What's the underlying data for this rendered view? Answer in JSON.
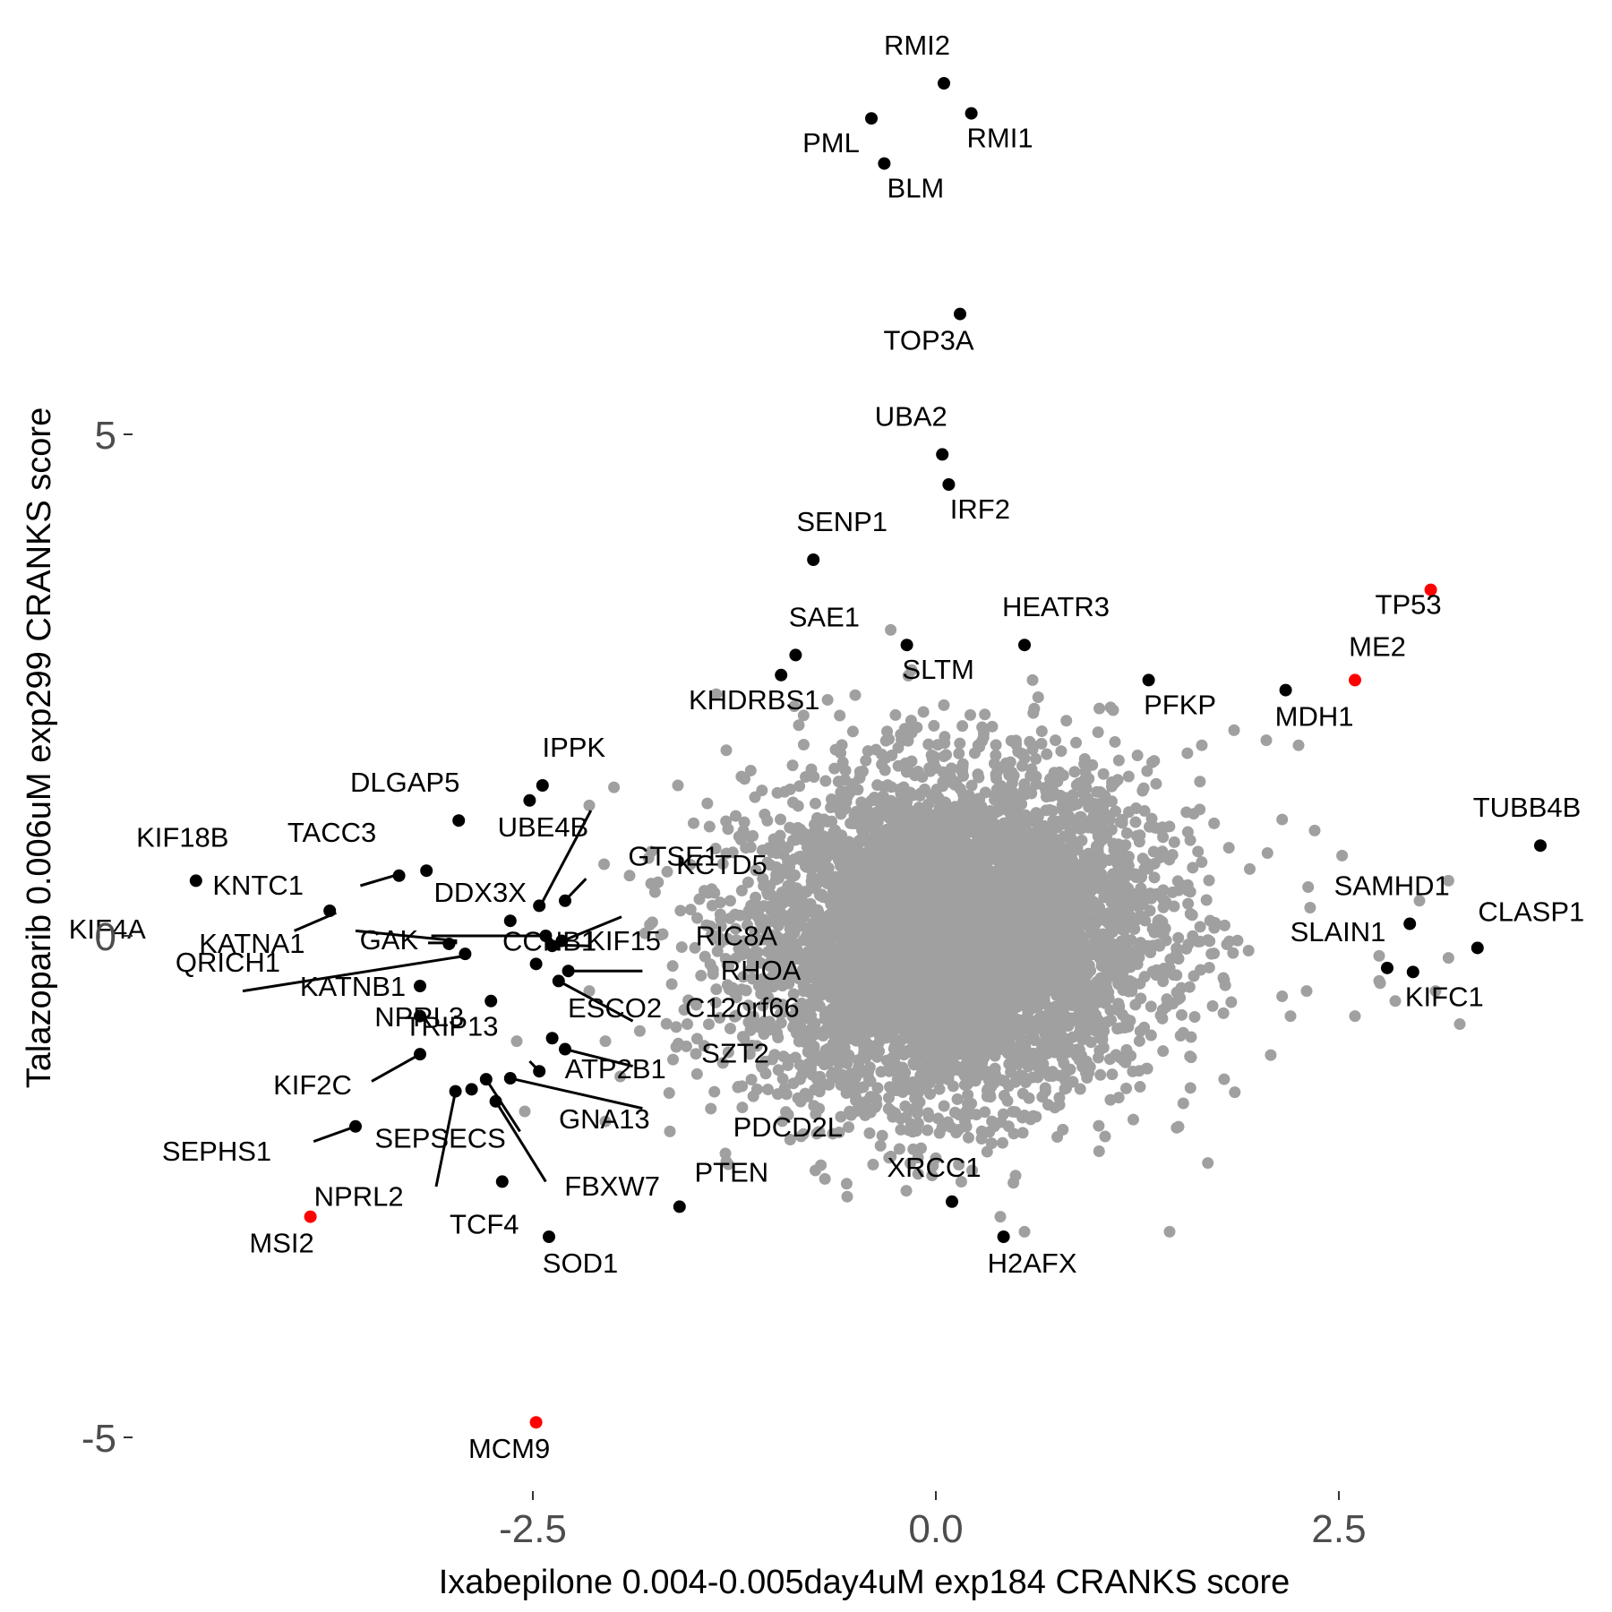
{
  "chart_data": {
    "type": "scatter",
    "xlabel": "Ixabepilone 0.004-0.005day4uM exp184 CRANKS score",
    "ylabel": "Talazoparib 0.006uM exp299 CRANKS score",
    "xlim": [
      -5.0,
      4.8
    ],
    "ylim": [
      -5.5,
      8.8
    ],
    "x_ticks": [
      -2.5,
      0.0,
      2.5
    ],
    "x_tick_labels": [
      "-2.5",
      "0.0",
      "2.5"
    ],
    "y_ticks": [
      -5,
      0,
      5
    ],
    "y_tick_labels": [
      "-5",
      "0",
      "5"
    ],
    "grid": false,
    "colors": {
      "highlight": "#000000",
      "special": "#ff0000",
      "background": "#a0a0a0",
      "connector": "#000000"
    },
    "labeled_points": [
      {
        "label": "RMI2",
        "x": 0.05,
        "y": 8.5,
        "color": "#000000"
      },
      {
        "label": "RMI1",
        "x": 0.22,
        "y": 8.2,
        "color": "#000000"
      },
      {
        "label": "PML",
        "x": -0.4,
        "y": 8.15,
        "color": "#000000"
      },
      {
        "label": "BLM",
        "x": -0.32,
        "y": 7.7,
        "color": "#000000"
      },
      {
        "label": "TOP3A",
        "x": 0.15,
        "y": 6.2,
        "color": "#000000"
      },
      {
        "label": "UBA2",
        "x": 0.04,
        "y": 4.8,
        "color": "#000000"
      },
      {
        "label": "IRF2",
        "x": 0.08,
        "y": 4.5,
        "color": "#000000"
      },
      {
        "label": "SENP1",
        "x": -0.76,
        "y": 3.75,
        "color": "#000000"
      },
      {
        "label": "TP53",
        "x": 3.07,
        "y": 3.45,
        "color": "#ff0000"
      },
      {
        "label": "SAE1",
        "x": -0.87,
        "y": 2.8,
        "color": "#000000"
      },
      {
        "label": "KHDRBS1",
        "x": -0.96,
        "y": 2.6,
        "color": "#000000"
      },
      {
        "label": "SLTM",
        "x": -0.18,
        "y": 2.9,
        "color": "#000000"
      },
      {
        "label": "HEATR3",
        "x": 0.55,
        "y": 2.9,
        "color": "#000000"
      },
      {
        "label": "ME2",
        "x": 2.6,
        "y": 2.55,
        "color": "#ff0000"
      },
      {
        "label": "PFKP",
        "x": 1.32,
        "y": 2.55,
        "color": "#000000"
      },
      {
        "label": "MDH1",
        "x": 2.17,
        "y": 2.45,
        "color": "#000000"
      },
      {
        "label": "IPPK",
        "x": -2.44,
        "y": 1.5,
        "color": "#000000"
      },
      {
        "label": "DLGAP5",
        "x": -2.96,
        "y": 1.15,
        "color": "#000000"
      },
      {
        "label": "UBE4B",
        "x": -2.52,
        "y": 1.35,
        "color": "#000000"
      },
      {
        "label": "TUBB4B",
        "x": 3.75,
        "y": 0.9,
        "color": "#000000"
      },
      {
        "label": "KIF18B",
        "x": -4.59,
        "y": 0.55,
        "color": "#000000"
      },
      {
        "label": "TACC3",
        "x": -3.33,
        "y": 0.6,
        "color": "#000000"
      },
      {
        "label": "DDX3X",
        "x": -3.16,
        "y": 0.65,
        "color": "#000000"
      },
      {
        "label": "GTSE1",
        "x": -2.46,
        "y": 0.3,
        "color": "#000000"
      },
      {
        "label": "KCTD5",
        "x": -2.3,
        "y": 0.35,
        "color": "#000000"
      },
      {
        "label": "KNTC1",
        "x": -3.76,
        "y": 0.25,
        "color": "#000000"
      },
      {
        "label": "SAMHD1",
        "x": 2.94,
        "y": 0.12,
        "color": "#000000"
      },
      {
        "label": "CLASP1",
        "x": 3.36,
        "y": -0.12,
        "color": "#000000"
      },
      {
        "label": "RIC8A",
        "x": -2.32,
        "y": -0.05,
        "color": "#000000"
      },
      {
        "label": "KIF15",
        "x": -2.38,
        "y": -0.1,
        "color": "#000000"
      },
      {
        "label": "GAK",
        "x": -2.42,
        "y": 0.0,
        "color": "#000000"
      },
      {
        "label": "KIF4A",
        "x": -2.64,
        "y": 0.15,
        "color": "#000000"
      },
      {
        "label": "KATNA1",
        "x": -3.02,
        "y": -0.08,
        "color": "#000000"
      },
      {
        "label": "SLAIN1",
        "x": 2.8,
        "y": -0.32,
        "color": "#000000"
      },
      {
        "label": "KIFC1",
        "x": 2.96,
        "y": -0.36,
        "color": "#000000"
      },
      {
        "label": "RHOA",
        "x": -2.28,
        "y": -0.35,
        "color": "#000000"
      },
      {
        "label": "QRICH1",
        "x": -2.92,
        "y": -0.18,
        "color": "#000000"
      },
      {
        "label": "KATNB1",
        "x": -3.2,
        "y": -0.5,
        "color": "#000000"
      },
      {
        "label": "CCNB1",
        "x": -2.48,
        "y": -0.28,
        "color": "#000000"
      },
      {
        "label": "C12orf66",
        "x": -2.34,
        "y": -0.45,
        "color": "#000000"
      },
      {
        "label": "NPRL3",
        "x": -2.76,
        "y": -0.65,
        "color": "#000000"
      },
      {
        "label": "ESCO2",
        "x": -2.38,
        "y": -1.02,
        "color": "#000000"
      },
      {
        "label": "SZT2",
        "x": -2.3,
        "y": -1.13,
        "color": "#000000"
      },
      {
        "label": "TRIP13",
        "x": -3.2,
        "y": -0.8,
        "color": "#000000"
      },
      {
        "label": "KIF2C",
        "x": -3.2,
        "y": -1.18,
        "color": "#000000"
      },
      {
        "label": "ATP2B1",
        "x": -2.46,
        "y": -1.35,
        "color": "#000000"
      },
      {
        "label": "GNA13",
        "x": -2.79,
        "y": -1.43,
        "color": "#000000"
      },
      {
        "label": "PDCD2L",
        "x": -2.64,
        "y": -1.42,
        "color": "#000000"
      },
      {
        "label": "SEPSECS",
        "x": -2.88,
        "y": -1.53,
        "color": "#000000"
      },
      {
        "label": "NPRL2",
        "x": -2.98,
        "y": -1.55,
        "color": "#000000"
      },
      {
        "label": "FBXW7",
        "x": -2.73,
        "y": -1.65,
        "color": "#000000"
      },
      {
        "label": "SEPHS1",
        "x": -3.6,
        "y": -1.9,
        "color": "#000000"
      },
      {
        "label": "TCF4",
        "x": -2.69,
        "y": -2.45,
        "color": "#000000"
      },
      {
        "label": "PTEN",
        "x": -1.59,
        "y": -2.7,
        "color": "#000000"
      },
      {
        "label": "XRCC1",
        "x": 0.1,
        "y": -2.65,
        "color": "#000000"
      },
      {
        "label": "MSI2",
        "x": -3.88,
        "y": -2.8,
        "color": "#ff0000"
      },
      {
        "label": "SOD1",
        "x": -2.4,
        "y": -3.0,
        "color": "#000000"
      },
      {
        "label": "H2AFX",
        "x": 0.42,
        "y": -3.0,
        "color": "#000000"
      },
      {
        "label": "MCM9",
        "x": -2.48,
        "y": -4.85,
        "color": "#ff0000"
      }
    ],
    "background_cloud": {
      "count": 6000,
      "color": "#a0a0a0",
      "center": [
        0.1,
        0.0
      ],
      "sd": [
        0.62,
        0.8
      ],
      "note_points": [
        [
          -0.28,
          3.05
        ],
        [
          0.6,
          2.55
        ],
        [
          1.1,
          2.25
        ],
        [
          1.65,
          1.9
        ],
        [
          1.85,
          2.05
        ],
        [
          2.05,
          1.95
        ],
        [
          2.25,
          1.9
        ],
        [
          3.0,
          0.35
        ],
        [
          3.18,
          0.55
        ],
        [
          2.52,
          0.8
        ],
        [
          2.35,
          1.05
        ],
        [
          3.18,
          -0.22
        ],
        [
          3.1,
          -0.55
        ],
        [
          2.75,
          -0.2
        ],
        [
          3.25,
          -0.88
        ],
        [
          2.6,
          -0.8
        ],
        [
          2.2,
          -0.8
        ],
        [
          2.3,
          -0.55
        ],
        [
          2.85,
          -0.65
        ],
        [
          2.75,
          -0.45
        ],
        [
          -0.5,
          2.4
        ],
        [
          -0.85,
          2.1
        ],
        [
          -1.3,
          1.85
        ],
        [
          -1.9,
          0.6
        ],
        [
          -2.15,
          -0.55
        ],
        [
          -2.05,
          -1.05
        ],
        [
          -2.05,
          -1.85
        ],
        [
          -1.65,
          -1.95
        ],
        [
          -0.55,
          -2.6
        ],
        [
          0.4,
          -2.8
        ],
        [
          0.55,
          -2.95
        ],
        [
          1.45,
          -2.95
        ],
        [
          -2.55,
          -1.75
        ],
        [
          -2.6,
          -1.05
        ],
        [
          -1.6,
          1.5
        ],
        [
          -2.15,
          1.3
        ],
        [
          -0.15,
          2.65
        ],
        [
          0.05,
          2.3
        ],
        [
          1.05,
          -2.0
        ],
        [
          -1.3,
          -2.25
        ]
      ]
    }
  }
}
